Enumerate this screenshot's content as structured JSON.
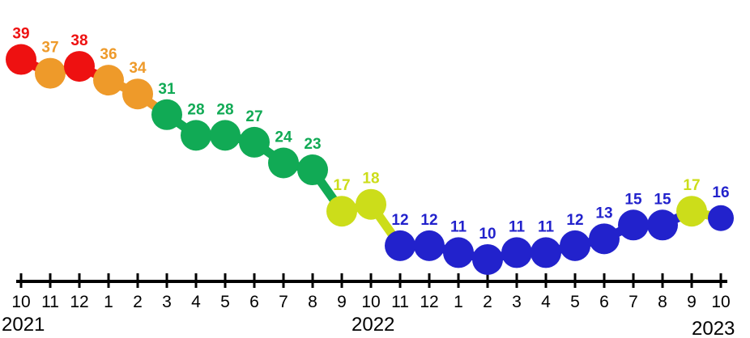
{
  "chart_data": {
    "type": "line",
    "x_tick_labels": [
      "10",
      "11",
      "12",
      "1",
      "2",
      "3",
      "4",
      "5",
      "6",
      "7",
      "8",
      "9",
      "10",
      "11",
      "12",
      "1",
      "2",
      "3",
      "4",
      "5",
      "6",
      "7",
      "8",
      "9",
      "10"
    ],
    "year_labels": [
      {
        "text": "2021",
        "at_index": 0
      },
      {
        "text": "2022",
        "at_index": 12
      },
      {
        "text": "2023",
        "at_index": 24
      }
    ],
    "values": [
      39,
      37,
      38,
      36,
      34,
      31,
      28,
      28,
      27,
      24,
      23,
      17,
      18,
      12,
      12,
      11,
      10,
      11,
      11,
      12,
      13,
      15,
      15,
      17,
      16
    ],
    "data_labels": [
      "39",
      "37",
      "38",
      "36",
      "34",
      "31",
      "28",
      "28",
      "27",
      "24",
      "23",
      "17",
      "18",
      "12",
      "12",
      "11",
      "10",
      "11",
      "11",
      "12",
      "13",
      "15",
      "15",
      "17",
      "16"
    ],
    "ylim": [
      8,
      40
    ],
    "grid": false,
    "color_bands": [
      {
        "min": 38,
        "color": "#ee1111"
      },
      {
        "min": 33,
        "color": "#ee9a2a"
      },
      {
        "min": 19,
        "color": "#11aa55"
      },
      {
        "min": 16.5,
        "color": "#ccdd1a"
      },
      {
        "min": 0,
        "color": "#2222cc"
      }
    ]
  }
}
